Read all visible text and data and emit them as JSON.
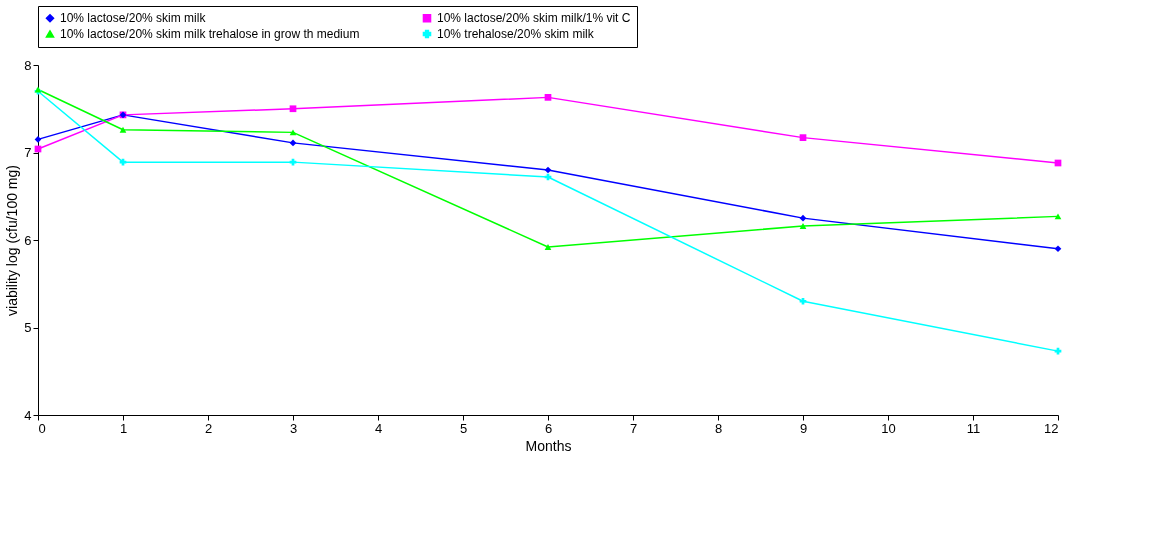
{
  "chart_data": {
    "type": "line",
    "xlabel": "Months",
    "ylabel": "viability log (cfu/100 mg)",
    "x": [
      0,
      1,
      3,
      6,
      9,
      12
    ],
    "series": [
      {
        "name": "10% lactose/20% skim milk",
        "color": "#0000ff",
        "marker": "diamond",
        "values": [
          7.15,
          7.43,
          7.11,
          6.8,
          6.25,
          5.9
        ]
      },
      {
        "name": "10% lactose/20% skim milk/1% vit C",
        "color": "#ff00ff",
        "marker": "square",
        "values": [
          7.04,
          7.43,
          7.5,
          7.63,
          7.17,
          6.88
        ]
      },
      {
        "name": "10% lactose/20% skim milk trehalose in grow th medium",
        "color": "#00ff00",
        "marker": "triangle",
        "values": [
          7.72,
          7.26,
          7.23,
          5.92,
          6.16,
          6.27
        ]
      },
      {
        "name": "10% trehalose/20% skim milk",
        "color": "#00ffff",
        "marker": "cross",
        "values": [
          7.7,
          6.89,
          6.89,
          6.72,
          5.3,
          4.73
        ]
      }
    ],
    "xlim": [
      0,
      12
    ],
    "xticks": [
      0,
      1,
      2,
      3,
      4,
      5,
      6,
      7,
      8,
      9,
      10,
      11,
      12
    ],
    "ylim": [
      4,
      8
    ],
    "yticks": [
      4,
      5,
      6,
      7,
      8
    ],
    "grid": false,
    "legend": "top",
    "line_style": "solid"
  }
}
